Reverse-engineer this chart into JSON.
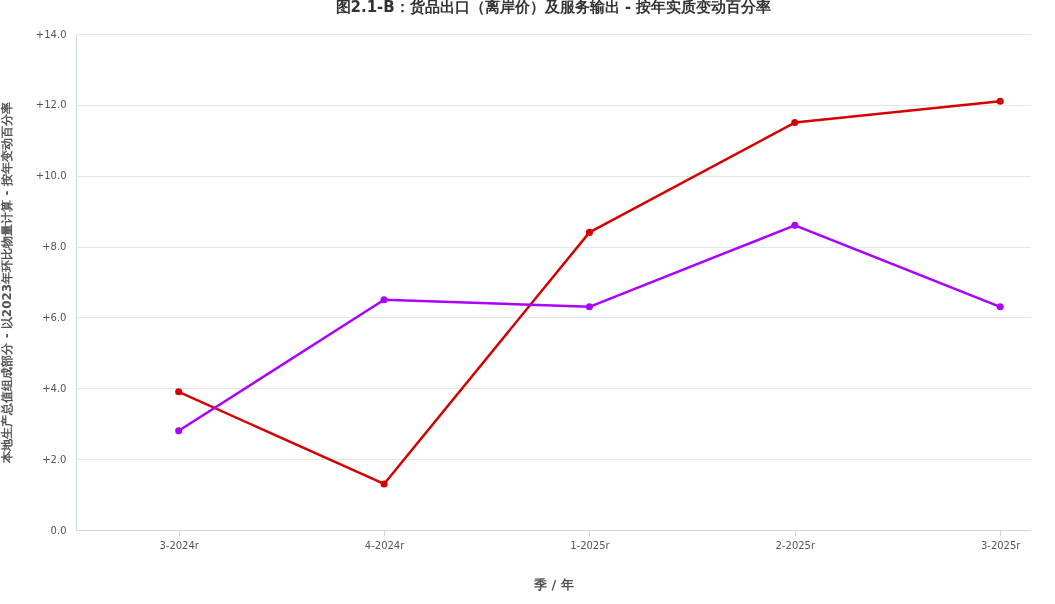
{
  "chart_data": {
    "type": "line",
    "title": "图2.1-B：货品出口（离岸价）及服务输出 - 按年实质变动百分率",
    "xlabel": "季 / 年",
    "ylabel": "本地生产总值组成部分 - 以2023年环比物量计算 - 按年变动百分率",
    "categories": [
      "3-2024r",
      "4-2024r",
      "1-2025r",
      "2-2025r",
      "3-2025r"
    ],
    "series": [
      {
        "color": "#d40000",
        "values": [
          3.9,
          1.3,
          8.4,
          11.5,
          12.1
        ]
      },
      {
        "color": "#aa00ff",
        "values": [
          2.8,
          6.5,
          6.3,
          8.6,
          6.3
        ]
      }
    ],
    "ylim": [
      0,
      14
    ],
    "yticks": [
      {
        "value": 0,
        "label": "0.0"
      },
      {
        "value": 2,
        "label": "+2.0"
      },
      {
        "value": 4,
        "label": "+4.0"
      },
      {
        "value": 6,
        "label": "+6.0"
      },
      {
        "value": 8,
        "label": "+8.0"
      },
      {
        "value": 10,
        "label": "+10.0"
      },
      {
        "value": 12,
        "label": "+12.0"
      },
      {
        "value": 14,
        "label": "+14.0"
      }
    ],
    "grid": "y",
    "legend": false,
    "marker": "circle",
    "line_style": "solid"
  }
}
